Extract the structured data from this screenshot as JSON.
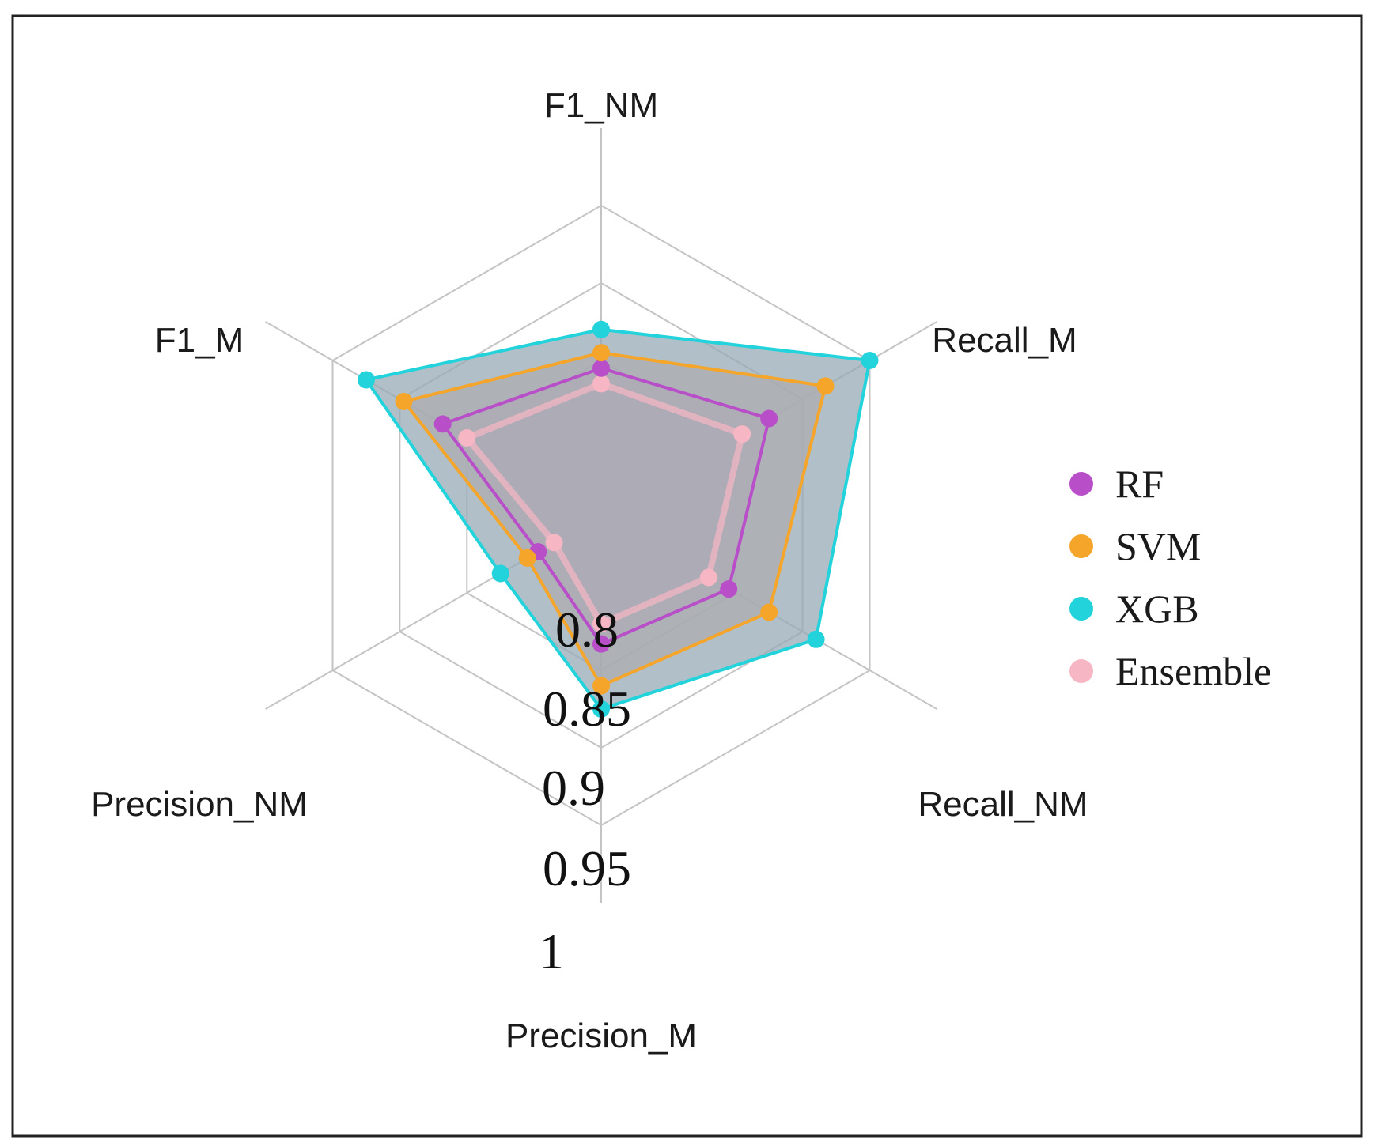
{
  "chart_data": {
    "type": "radar",
    "axes": [
      "F1_NM",
      "Recall_M",
      "Recall_NM",
      "Precision_M",
      "Precision_NM",
      "F1_M"
    ],
    "ticks": [
      "0.8",
      "0.85",
      "0.9",
      "0.95",
      "1"
    ],
    "range": [
      1.0,
      0.75
    ],
    "series": [
      {
        "name": "RF",
        "color": "#b84fc9",
        "values": [
          0.905,
          0.875,
          0.905,
          0.917,
          0.953,
          0.882
        ]
      },
      {
        "name": "SVM",
        "color": "#f5a52a",
        "values": [
          0.895,
          0.833,
          0.875,
          0.89,
          0.945,
          0.853
        ]
      },
      {
        "name": "XGB",
        "color": "#22d3dc",
        "values": [
          0.88,
          0.8,
          0.84,
          0.875,
          0.925,
          0.825
        ]
      },
      {
        "name": "Ensemble",
        "color": "#f6b6c4",
        "values": [
          0.915,
          0.895,
          0.92,
          0.93,
          0.965,
          0.9
        ]
      }
    ]
  }
}
